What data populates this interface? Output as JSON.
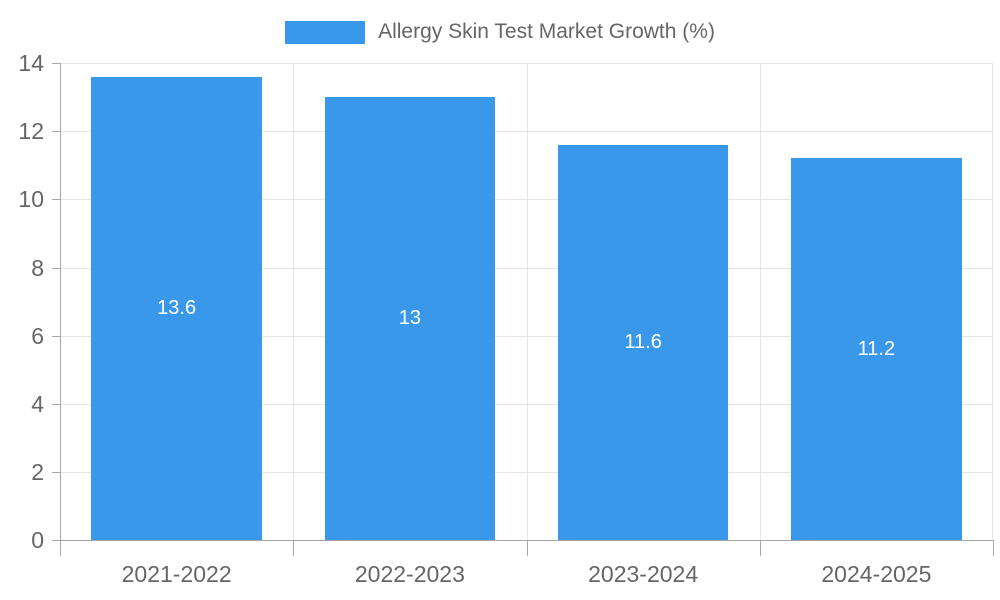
{
  "chart_data": {
    "type": "bar",
    "title": "Allergy Skin Test Market Growth (%)",
    "categories": [
      "2021-2022",
      "2022-2023",
      "2023-2024",
      "2024-2025"
    ],
    "values": [
      13.6,
      13,
      11.6,
      11.2
    ],
    "data_labels": [
      "13.6",
      "13",
      "11.6",
      "11.2"
    ],
    "xlabel": "",
    "ylabel": "",
    "ylim": [
      0,
      14
    ],
    "ytick_step": 2,
    "ytick_labels_top_to_bottom": [
      "14",
      "12",
      "10",
      "8",
      "6",
      "4",
      "2",
      "0"
    ],
    "grid": true,
    "legend_position": "top-center",
    "colors": {
      "bar": "#3A98EB",
      "bar_label": "#FFFFFF",
      "axis_text": "#666666",
      "gridline": "#E5E5E5",
      "axis_line": "#A6A6A6",
      "background": "#FFFFFF"
    }
  }
}
